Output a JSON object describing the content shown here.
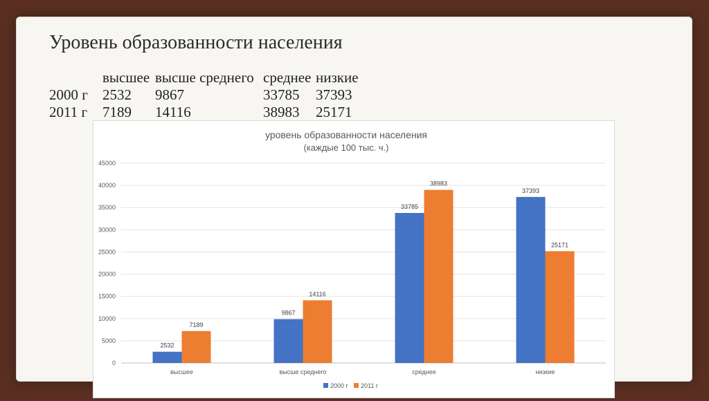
{
  "slide": {
    "title": "Уровень образованности населения",
    "table": {
      "headers": [
        "высшее",
        "высше среднего",
        "среднее",
        "низкие"
      ],
      "rows": [
        {
          "label": "2000 г",
          "values": [
            "2532",
            "9867",
            "33785",
            "37393"
          ]
        },
        {
          "label": "2011 г",
          "values": [
            "7189",
            "14116",
            "38983",
            "25171"
          ]
        }
      ]
    }
  },
  "colors": {
    "background": "#5a2f22",
    "series_2000": "#4472c4",
    "series_2011": "#ed7d31"
  },
  "chart_data": {
    "type": "bar",
    "title": "уровень образованности населения",
    "subtitle": "(каждые 100 тыс. ч.)",
    "xlabel": "",
    "ylabel": "",
    "categories": [
      "высшее",
      "высше среднего",
      "среднее",
      "низкие"
    ],
    "series": [
      {
        "name": "2000 г",
        "values": [
          2532,
          9867,
          33785,
          37393
        ],
        "color": "#4472c4"
      },
      {
        "name": "2011 г",
        "values": [
          7189,
          14116,
          38983,
          25171
        ],
        "color": "#ed7d31"
      }
    ],
    "ylim": [
      0,
      45000
    ],
    "yticks": [
      0,
      5000,
      10000,
      15000,
      20000,
      25000,
      30000,
      35000,
      40000,
      45000
    ],
    "grid": true,
    "legend": "bottom",
    "data_labels": true
  }
}
